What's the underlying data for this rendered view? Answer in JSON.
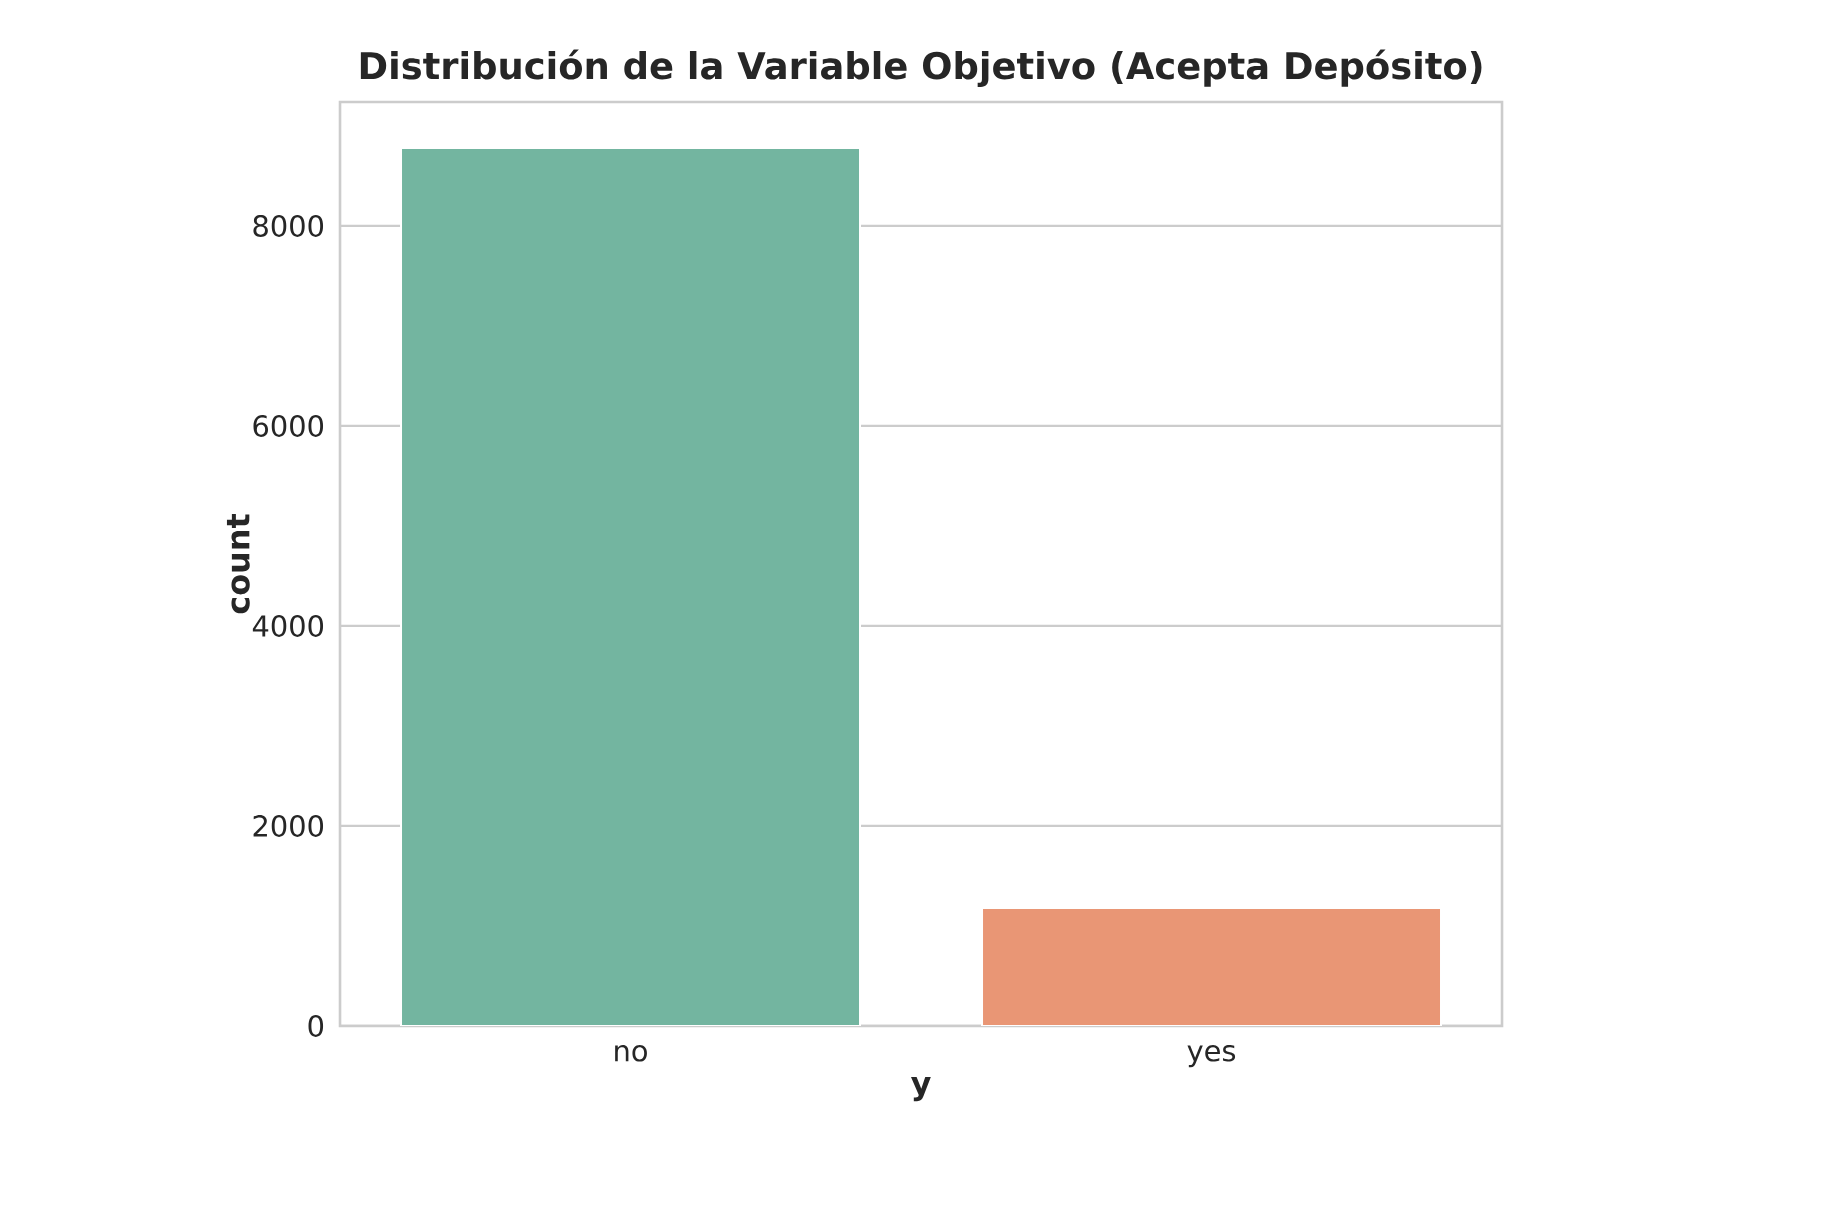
{
  "chart_data": {
    "type": "bar",
    "title": "**Distribución de la Variable Objetivo (Acepta Depósito)**",
    "xlabel": "**y**",
    "ylabel": "**count**",
    "categories": [
      "no",
      "yes"
    ],
    "values": [
      8780,
      1180
    ],
    "colors": [
      "#73b5a0",
      "#e99675"
    ],
    "ylim": [
      0,
      9240
    ],
    "yticks": [
      0,
      2000,
      4000,
      6000,
      8000
    ],
    "grid": "y"
  }
}
